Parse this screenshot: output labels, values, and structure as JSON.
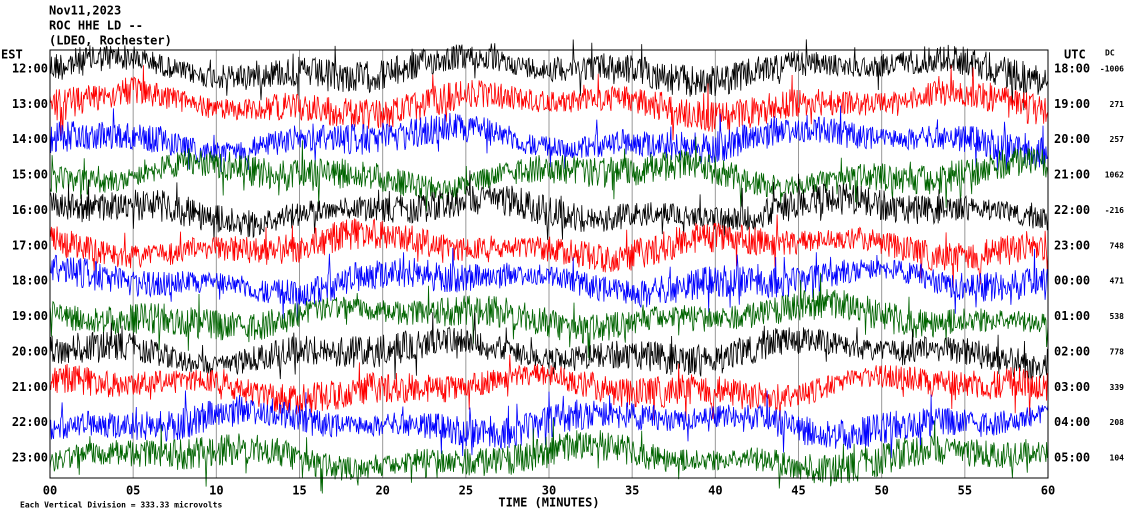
{
  "chart_data": {
    "type": "helicorder",
    "title_lines": [
      "Nov11,2023",
      "ROC HHE LD --",
      "(LDEO, Rochester)"
    ],
    "left_axis_label": "EST",
    "right_axis_label": "UTC",
    "dc_label": "DC",
    "est_labels": [
      "12:00",
      "13:00",
      "14:00",
      "15:00",
      "16:00",
      "17:00",
      "18:00",
      "19:00",
      "20:00",
      "21:00",
      "22:00",
      "23:00"
    ],
    "utc_labels": [
      "18:00",
      "19:00",
      "20:00",
      "21:00",
      "22:00",
      "23:00",
      "00:00",
      "01:00",
      "02:00",
      "03:00",
      "04:00",
      "05:00"
    ],
    "dc_values": [
      -1006,
      271,
      257,
      1062,
      -216,
      748,
      471,
      538,
      778,
      339,
      208,
      104
    ],
    "trace_colors": [
      "#000000",
      "#ff0000",
      "#0000ff",
      "#006400"
    ],
    "xlim": [
      0,
      60
    ],
    "xticks": [
      {
        "value": 0,
        "label": "00"
      },
      {
        "value": 5,
        "label": "05"
      },
      10,
      15,
      20,
      25,
      30,
      35,
      40,
      45,
      50,
      55,
      60
    ],
    "xlabel": "TIME (MINUTES)",
    "footer": "Each Vertical Division =  333.33 microvolts",
    "grid": true
  }
}
